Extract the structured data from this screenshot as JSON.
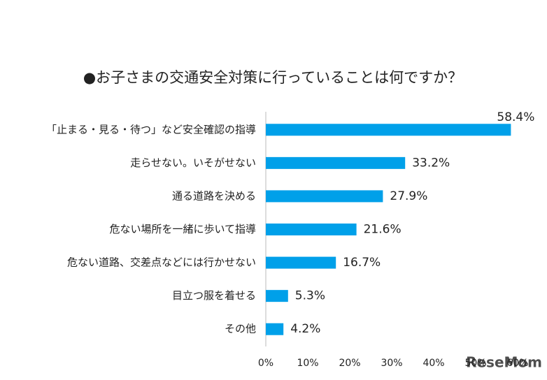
{
  "chart_data": {
    "type": "bar",
    "orientation": "horizontal",
    "title": "●お子さまの交通安全対策に行っていることは何ですか？",
    "categories": [
      "「止まる・見る・待つ」など安全確認の指導",
      "走らせない。いそがせない",
      "通る道路を決める",
      "危ない場所を一緒に歩いて指導",
      "危ない道路、交差点などには行かせない",
      "目立つ服を着せる",
      "その他"
    ],
    "values": [
      58.4,
      33.2,
      27.9,
      21.6,
      16.7,
      5.3,
      4.2
    ],
    "value_labels": [
      "58.4%",
      "33.2%",
      "27.9%",
      "21.6%",
      "16.7%",
      "5.3%",
      "4.2%"
    ],
    "color": "#00a0e9",
    "xlim": [
      0,
      60
    ],
    "xticks": [
      {
        "value": 0,
        "label": "0%"
      },
      {
        "value": 10,
        "label": "10%"
      },
      {
        "value": 20,
        "label": "20%"
      },
      {
        "value": 30,
        "label": "30%"
      },
      {
        "value": 40,
        "label": "40%"
      },
      {
        "value": 50,
        "label": "50%"
      },
      {
        "value": 60,
        "label": "60%"
      }
    ],
    "grid": false,
    "watermark": "ReseMom"
  }
}
